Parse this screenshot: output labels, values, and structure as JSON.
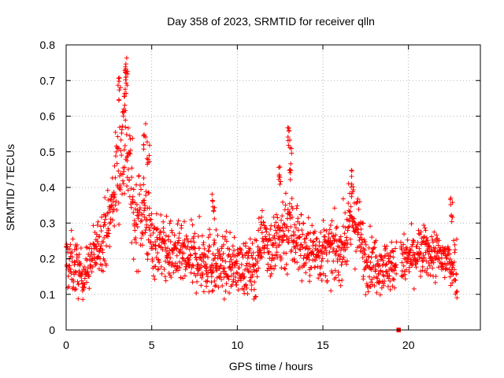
{
  "chart_data": {
    "type": "scatter",
    "title": "Day 358 of 2023, SRMTID for receiver qlln",
    "xlabel": "GPS time / hours",
    "ylabel": "SRMTID / TECUs",
    "xlim": [
      0,
      24.2
    ],
    "ylim": [
      0,
      0.8
    ],
    "x_ticks": [
      0,
      5,
      10,
      15,
      20
    ],
    "y_ticks": [
      0,
      0.1,
      0.2,
      0.3,
      0.4,
      0.5,
      0.6,
      0.7,
      0.8
    ],
    "x_tick_labels": [
      "0",
      "5",
      "10",
      "15",
      "20"
    ],
    "y_tick_labels": [
      "0",
      "0.1",
      "0.2",
      "0.3",
      "0.4",
      "0.5",
      "0.6",
      "0.7",
      "0.8"
    ],
    "grid": true,
    "marker": "plus",
    "color": "#ff0000",
    "gap_hours": [
      19.3,
      19.55
    ],
    "x_end": 22.85,
    "profile": [
      {
        "t": 0.0,
        "v": 0.19,
        "s": 0.06
      },
      {
        "t": 0.5,
        "v": 0.18,
        "s": 0.06
      },
      {
        "t": 1.0,
        "v": 0.15,
        "s": 0.04
      },
      {
        "t": 1.5,
        "v": 0.2,
        "s": 0.05
      },
      {
        "t": 2.0,
        "v": 0.25,
        "s": 0.06
      },
      {
        "t": 2.5,
        "v": 0.3,
        "s": 0.07
      },
      {
        "t": 3.0,
        "v": 0.45,
        "s": 0.1
      },
      {
        "t": 3.5,
        "v": 0.55,
        "s": 0.15
      },
      {
        "t": 4.0,
        "v": 0.3,
        "s": 0.08
      },
      {
        "t": 4.5,
        "v": 0.35,
        "s": 0.1
      },
      {
        "t": 5.0,
        "v": 0.25,
        "s": 0.07
      },
      {
        "t": 6.0,
        "v": 0.22,
        "s": 0.06
      },
      {
        "t": 7.0,
        "v": 0.2,
        "s": 0.06
      },
      {
        "t": 8.0,
        "v": 0.2,
        "s": 0.07
      },
      {
        "t": 9.0,
        "v": 0.18,
        "s": 0.06
      },
      {
        "t": 10.0,
        "v": 0.18,
        "s": 0.05
      },
      {
        "t": 11.0,
        "v": 0.17,
        "s": 0.06
      },
      {
        "t": 11.5,
        "v": 0.28,
        "s": 0.05
      },
      {
        "t": 12.0,
        "v": 0.22,
        "s": 0.07
      },
      {
        "t": 12.5,
        "v": 0.26,
        "s": 0.08
      },
      {
        "t": 13.0,
        "v": 0.3,
        "s": 0.1
      },
      {
        "t": 14.0,
        "v": 0.22,
        "s": 0.06
      },
      {
        "t": 15.0,
        "v": 0.22,
        "s": 0.06
      },
      {
        "t": 16.0,
        "v": 0.22,
        "s": 0.06
      },
      {
        "t": 16.8,
        "v": 0.32,
        "s": 0.08
      },
      {
        "t": 17.5,
        "v": 0.2,
        "s": 0.06
      },
      {
        "t": 18.5,
        "v": 0.18,
        "s": 0.05
      },
      {
        "t": 19.3,
        "v": 0.18,
        "s": 0.05
      },
      {
        "t": 20.0,
        "v": 0.2,
        "s": 0.05
      },
      {
        "t": 21.0,
        "v": 0.22,
        "s": 0.05
      },
      {
        "t": 22.0,
        "v": 0.2,
        "s": 0.05
      },
      {
        "t": 22.85,
        "v": 0.18,
        "s": 0.06
      }
    ],
    "peaks": [
      {
        "t": 3.1,
        "v": 0.72
      },
      {
        "t": 3.55,
        "v": 0.78
      },
      {
        "t": 3.5,
        "v": 0.75
      },
      {
        "t": 3.4,
        "v": 0.68
      },
      {
        "t": 4.6,
        "v": 0.58
      },
      {
        "t": 4.8,
        "v": 0.53
      },
      {
        "t": 12.5,
        "v": 0.48
      },
      {
        "t": 13.0,
        "v": 0.57
      },
      {
        "t": 13.1,
        "v": 0.52
      },
      {
        "t": 16.7,
        "v": 0.45
      },
      {
        "t": 8.6,
        "v": 0.39
      },
      {
        "t": 22.5,
        "v": 0.38
      }
    ]
  }
}
